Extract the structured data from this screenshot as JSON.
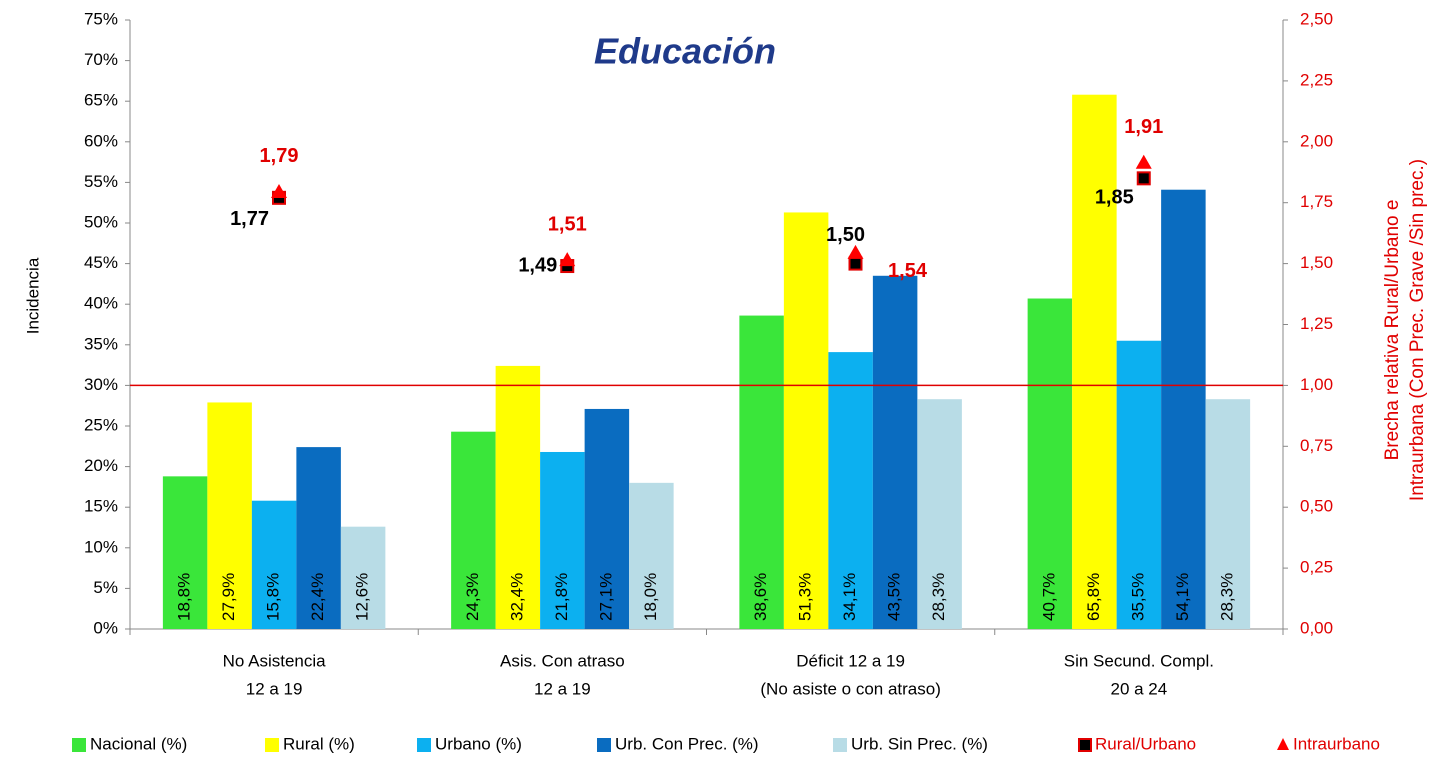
{
  "chart_data": {
    "type": "bar",
    "title": "Educación",
    "ylabel": "Incidencia",
    "y2label": [
      "Brecha relativa Rural/Urbano e",
      "Intraurbana  (Con Prec. Grave /Sin prec.)"
    ],
    "categories": [
      [
        "No Asistencia",
        "12 a 19"
      ],
      [
        "Asis. Con atraso",
        "12 a 19"
      ],
      [
        "Déficit 12 a 19",
        "(No asiste o con atraso)"
      ],
      [
        "Sin Secund. Compl.",
        "20 a 24"
      ]
    ],
    "series": [
      {
        "name": "Nacional (%)",
        "color": "#3ae63a",
        "values": [
          18.8,
          24.3,
          38.6,
          40.7
        ],
        "value_labels": [
          "18,8%",
          "24,3%",
          "38,6%",
          "40,7%"
        ]
      },
      {
        "name": "Rural (%)",
        "color": "#ffff00",
        "values": [
          27.9,
          32.4,
          51.3,
          65.8
        ],
        "value_labels": [
          "27,9%",
          "32,4%",
          "51,3%",
          "65,8%"
        ]
      },
      {
        "name": "Urbano (%)",
        "color": "#0cb0f0",
        "values": [
          15.8,
          21.8,
          34.1,
          35.5
        ],
        "value_labels": [
          "15,8%",
          "21,8%",
          "34,1%",
          "35,5%"
        ]
      },
      {
        "name": "Urb. Con Prec. (%)",
        "color": "#0a6cc0",
        "values": [
          22.4,
          27.1,
          43.5,
          54.1
        ],
        "value_labels": [
          "22,4%",
          "27,1%",
          "43,5%",
          "54,1%"
        ]
      },
      {
        "name": "Urb. Sin Prec. (%)",
        "color": "#b8dce6",
        "values": [
          12.6,
          18.0,
          28.3,
          28.3
        ],
        "value_labels": [
          "12,6%",
          "18,0%",
          "28,3%",
          "28,3%"
        ]
      },
      {
        "name": "Rural/Urbano",
        "color": "#000000",
        "axis": "y2",
        "marker": "square",
        "values": [
          1.77,
          1.49,
          1.5,
          1.85
        ],
        "value_labels": [
          "1,77",
          "1,49",
          "1,50",
          "1,85"
        ]
      },
      {
        "name": "Intraurbano",
        "color": "#ff0000",
        "axis": "y2",
        "marker": "triangle",
        "values": [
          1.79,
          1.51,
          1.54,
          1.91
        ],
        "value_labels": [
          "1,79",
          "1,51",
          "1,54",
          "1,91"
        ]
      }
    ],
    "ylim": [
      0,
      75
    ],
    "yticks": [
      {
        "value": 0,
        "label": "0%"
      },
      {
        "value": 5,
        "label": "5%"
      },
      {
        "value": 10,
        "label": "10%"
      },
      {
        "value": 15,
        "label": "15%"
      },
      {
        "value": 20,
        "label": "20%"
      },
      {
        "value": 25,
        "label": "25%"
      },
      {
        "value": 30,
        "label": "30%"
      },
      {
        "value": 35,
        "label": "35%"
      },
      {
        "value": 40,
        "label": "40%"
      },
      {
        "value": 45,
        "label": "45%"
      },
      {
        "value": 50,
        "label": "50%"
      },
      {
        "value": 55,
        "label": "55%"
      },
      {
        "value": 60,
        "label": "60%"
      },
      {
        "value": 65,
        "label": "65%"
      },
      {
        "value": 70,
        "label": "70%"
      },
      {
        "value": 75,
        "label": "75%"
      }
    ],
    "y2lim": [
      0,
      2.5
    ],
    "y2ticks": [
      {
        "value": 0,
        "label": "0,00"
      },
      {
        "value": 0.25,
        "label": "0,25"
      },
      {
        "value": 0.5,
        "label": "0,50"
      },
      {
        "value": 0.75,
        "label": "0,75"
      },
      {
        "value": 1,
        "label": "1,00"
      },
      {
        "value": 1.25,
        "label": "1,25"
      },
      {
        "value": 1.5,
        "label": "1,50"
      },
      {
        "value": 1.75,
        "label": "1,75"
      },
      {
        "value": 2,
        "label": "2,00"
      },
      {
        "value": 2.25,
        "label": "2,25"
      },
      {
        "value": 2.5,
        "label": "2,50"
      }
    ],
    "reference_line": {
      "axis": "y2",
      "value": 1,
      "color": "#e00000"
    },
    "legend": "bottom"
  }
}
